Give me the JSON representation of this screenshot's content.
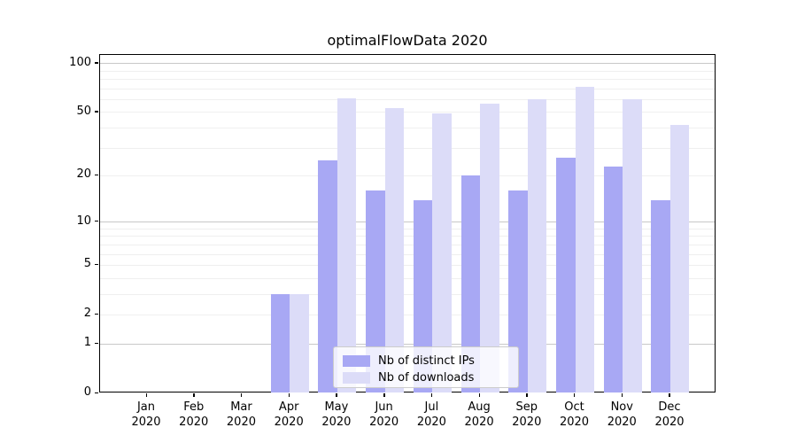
{
  "title": "optimalFlowData 2020",
  "chart_data": {
    "type": "bar",
    "title": "optimalFlowData 2020",
    "xlabel": "",
    "ylabel": "",
    "months": [
      "Jan",
      "Feb",
      "Mar",
      "Apr",
      "May",
      "Jun",
      "Jul",
      "Aug",
      "Sep",
      "Oct",
      "Nov",
      "Dec"
    ],
    "year_label": "2020",
    "categories": [
      "Jan 2020",
      "Feb 2020",
      "Mar 2020",
      "Apr 2020",
      "May 2020",
      "Jun 2020",
      "Jul 2020",
      "Aug 2020",
      "Sep 2020",
      "Oct 2020",
      "Nov 2020",
      "Dec 2020"
    ],
    "series": [
      {
        "name": "Nb of distinct IPs",
        "color": "#a8a8f4",
        "values": [
          0,
          0,
          0,
          3,
          25,
          16,
          14,
          20,
          16,
          26,
          23,
          14
        ]
      },
      {
        "name": "Nb of downloads",
        "color": "#dcdcf8",
        "values": [
          0,
          0,
          0,
          3,
          61,
          53,
          49,
          57,
          60,
          72,
          60,
          42
        ]
      }
    ],
    "yscale": "log1p",
    "ylim": [
      0,
      113
    ],
    "y_tick_labels": [
      0,
      1,
      2,
      5,
      10,
      20,
      50,
      100
    ],
    "y_major_gridlines": [
      1,
      10,
      100
    ],
    "y_minor_gridlines": [
      2,
      3,
      4,
      5,
      6,
      7,
      8,
      9,
      20,
      30,
      40,
      50,
      60,
      70,
      80,
      90
    ],
    "grid": "horizontal",
    "legend_position": "lower center"
  },
  "colors": {
    "major_grid": "#c8c8c8",
    "minor_grid": "#efefef",
    "spine": "#000000",
    "series_ips": "#a8a8f4",
    "series_downloads": "#dcdcf8"
  }
}
